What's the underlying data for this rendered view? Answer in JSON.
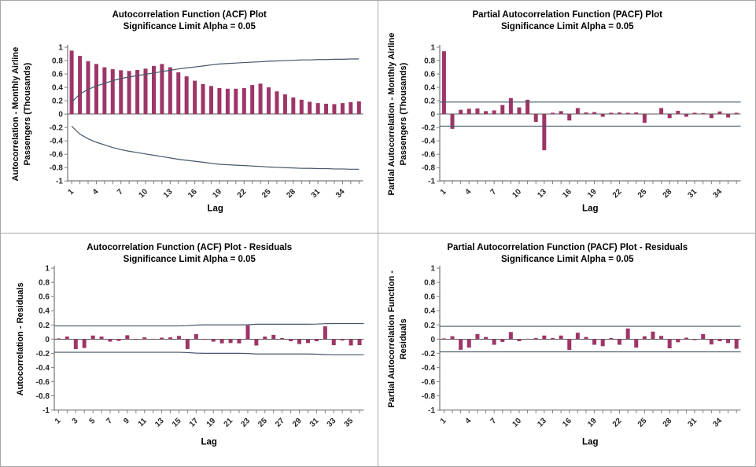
{
  "window": {
    "background": "#FFFFFF",
    "frame_color": "#A6A6A6"
  },
  "colors": {
    "bar": "#9D3667",
    "significance_line": "#44566B",
    "axis_line": "#595959",
    "tick_mark": "#808080",
    "tick_text": "#262626",
    "title_text": "#000000"
  },
  "chart_data": [
    {
      "id": "acf",
      "type": "bar",
      "title": "Autocorrelation Function (ACF) Plot",
      "subtitle": "Significance Limit Alpha = 0.05",
      "ylabel_lines": [
        "Autocorrelation - Monthly Airline",
        "Passengers (Thousands)"
      ],
      "xlabel": "Lag",
      "ylim": [
        -1,
        1
      ],
      "ytick_step": 0.2,
      "yticks": [
        "1",
        "0.8",
        "0.6",
        "0.4",
        "0.2",
        "0",
        "-0.2",
        "-0.4",
        "-0.6",
        "-0.8",
        "-1"
      ],
      "xtick_labels": [
        1,
        4,
        7,
        10,
        13,
        16,
        19,
        22,
        25,
        28,
        31,
        34
      ],
      "legend": "none",
      "grid": "off",
      "limit_span": "lags",
      "values": [
        0.95,
        0.87,
        0.79,
        0.75,
        0.7,
        0.67,
        0.655,
        0.645,
        0.66,
        0.68,
        0.72,
        0.75,
        0.7,
        0.625,
        0.565,
        0.5,
        0.45,
        0.42,
        0.39,
        0.38,
        0.38,
        0.39,
        0.435,
        0.455,
        0.4,
        0.34,
        0.295,
        0.25,
        0.215,
        0.185,
        0.165,
        0.155,
        0.15,
        0.165,
        0.18,
        0.19
      ],
      "upper_limit": [
        0.18,
        0.3,
        0.37,
        0.42,
        0.46,
        0.5,
        0.53,
        0.555,
        0.575,
        0.595,
        0.615,
        0.635,
        0.655,
        0.675,
        0.69,
        0.705,
        0.72,
        0.735,
        0.75,
        0.757,
        0.764,
        0.77,
        0.776,
        0.782,
        0.79,
        0.795,
        0.8,
        0.805,
        0.81,
        0.81,
        0.815,
        0.815,
        0.82,
        0.82,
        0.825,
        0.825
      ],
      "lower_limit": [
        -0.18,
        -0.3,
        -0.37,
        -0.42,
        -0.46,
        -0.5,
        -0.53,
        -0.555,
        -0.575,
        -0.595,
        -0.615,
        -0.635,
        -0.655,
        -0.675,
        -0.69,
        -0.705,
        -0.72,
        -0.735,
        -0.75,
        -0.757,
        -0.764,
        -0.77,
        -0.776,
        -0.782,
        -0.79,
        -0.795,
        -0.8,
        -0.805,
        -0.81,
        -0.81,
        -0.815,
        -0.815,
        -0.82,
        -0.82,
        -0.825,
        -0.825
      ]
    },
    {
      "id": "pacf",
      "type": "bar",
      "title": "Partial Autocorrelation Function (PACF) Plot",
      "subtitle": "Significance Limit Alpha = 0.05",
      "ylabel_lines": [
        "Partial Autocorrelation - Monthly Airline",
        "Passengers (Thousands)"
      ],
      "xlabel": "Lag",
      "ylim": [
        -1,
        1
      ],
      "ytick_step": 0.2,
      "yticks": [
        "1",
        "0.8",
        "0.6",
        "0.4",
        "0.2",
        "0",
        "-0.2",
        "-0.4",
        "-0.6",
        "-0.8",
        "-1"
      ],
      "xtick_labels": [
        1,
        4,
        7,
        10,
        13,
        16,
        19,
        22,
        25,
        28,
        31,
        34
      ],
      "legend": "none",
      "grid": "off",
      "limit_span": "full",
      "values": [
        0.94,
        -0.22,
        0.065,
        0.08,
        0.085,
        0.045,
        0.055,
        0.135,
        0.24,
        0.1,
        0.215,
        -0.115,
        -0.54,
        0.02,
        0.045,
        -0.095,
        0.09,
        0.025,
        0.03,
        -0.04,
        0.02,
        0.025,
        0.02,
        0.025,
        -0.13,
        0.005,
        0.09,
        -0.06,
        0.05,
        -0.04,
        0.02,
        0.015,
        -0.06,
        0.04,
        -0.05,
        0.02
      ],
      "upper_limit": [
        0.18,
        0.18,
        0.18,
        0.18,
        0.18,
        0.18,
        0.18,
        0.18,
        0.18,
        0.18,
        0.18,
        0.18,
        0.18,
        0.18,
        0.18,
        0.18,
        0.18,
        0.18,
        0.18,
        0.18,
        0.18,
        0.18,
        0.18,
        0.18,
        0.18,
        0.18,
        0.18,
        0.18,
        0.18,
        0.18,
        0.18,
        0.18,
        0.18,
        0.18,
        0.18,
        0.18
      ],
      "lower_limit": [
        -0.18,
        -0.18,
        -0.18,
        -0.18,
        -0.18,
        -0.18,
        -0.18,
        -0.18,
        -0.18,
        -0.18,
        -0.18,
        -0.18,
        -0.18,
        -0.18,
        -0.18,
        -0.18,
        -0.18,
        -0.18,
        -0.18,
        -0.18,
        -0.18,
        -0.18,
        -0.18,
        -0.18,
        -0.18,
        -0.18,
        -0.18,
        -0.18,
        -0.18,
        -0.18,
        -0.18,
        -0.18,
        -0.18,
        -0.18,
        -0.18,
        -0.18
      ]
    },
    {
      "id": "acf_residuals",
      "type": "bar",
      "title": "Autocorrelation Function (ACF) Plot - Residuals",
      "subtitle": "Significance Limit Alpha = 0.05",
      "ylabel_lines": [
        "Autocorrelation - Residuals"
      ],
      "xlabel": "Lag",
      "ylim": [
        -1,
        1
      ],
      "ytick_step": 0.2,
      "yticks": [
        "1",
        "0.8",
        "0.6",
        "0.4",
        "0.2",
        "0",
        "-0.2",
        "-0.4",
        "-0.6",
        "-0.8",
        "-1"
      ],
      "xtick_labels": [
        1,
        3,
        5,
        7,
        9,
        11,
        13,
        15,
        17,
        19,
        21,
        23,
        25,
        27,
        29,
        31,
        33,
        35
      ],
      "legend": "none",
      "grid": "off",
      "limit_span": "full",
      "values": [
        0.01,
        0.035,
        -0.14,
        -0.125,
        0.05,
        0.035,
        -0.035,
        -0.025,
        0.055,
        -0.01,
        0.025,
        0.005,
        0.02,
        0.025,
        0.045,
        -0.14,
        0.07,
        -0.01,
        -0.035,
        -0.06,
        -0.055,
        -0.06,
        0.195,
        -0.09,
        0.035,
        0.06,
        0.015,
        -0.03,
        -0.07,
        -0.055,
        -0.03,
        0.18,
        -0.085,
        -0.02,
        -0.09,
        -0.085
      ],
      "upper_limit": [
        0.185,
        0.185,
        0.185,
        0.185,
        0.185,
        0.185,
        0.185,
        0.185,
        0.185,
        0.185,
        0.185,
        0.185,
        0.185,
        0.185,
        0.185,
        0.19,
        0.198,
        0.2,
        0.2,
        0.2,
        0.2,
        0.2,
        0.203,
        0.21,
        0.21,
        0.21,
        0.21,
        0.21,
        0.21,
        0.21,
        0.212,
        0.218,
        0.22,
        0.22,
        0.22,
        0.22
      ],
      "lower_limit": [
        -0.185,
        -0.185,
        -0.185,
        -0.185,
        -0.185,
        -0.185,
        -0.185,
        -0.185,
        -0.185,
        -0.185,
        -0.185,
        -0.185,
        -0.185,
        -0.185,
        -0.185,
        -0.19,
        -0.198,
        -0.2,
        -0.2,
        -0.2,
        -0.2,
        -0.2,
        -0.203,
        -0.21,
        -0.21,
        -0.21,
        -0.21,
        -0.21,
        -0.21,
        -0.21,
        -0.212,
        -0.218,
        -0.22,
        -0.22,
        -0.22,
        -0.22
      ]
    },
    {
      "id": "pacf_residuals",
      "type": "bar",
      "title": "Partial Autocorrelation Function (PACF) Plot - Residuals",
      "subtitle": "Significance Limit Alpha = 0.05",
      "ylabel_lines": [
        "Partial Autocorrelation Function -",
        "Residuals"
      ],
      "xlabel": "Lag",
      "ylim": [
        -1,
        1
      ],
      "ytick_step": 0.2,
      "yticks": [
        "1",
        "0.8",
        "0.6",
        "0.4",
        "0.2",
        "0",
        "-0.2",
        "-0.4",
        "-0.6",
        "-0.8",
        "-1"
      ],
      "xtick_labels": [
        1,
        4,
        7,
        10,
        13,
        16,
        19,
        22,
        25,
        28,
        31,
        34
      ],
      "legend": "none",
      "grid": "off",
      "limit_span": "full",
      "values": [
        0.01,
        0.04,
        -0.15,
        -0.12,
        0.07,
        0.03,
        -0.08,
        -0.04,
        0.1,
        -0.03,
        0.005,
        0.015,
        0.05,
        0.015,
        0.05,
        -0.155,
        0.09,
        0.03,
        -0.08,
        -0.1,
        0.015,
        -0.08,
        0.15,
        -0.12,
        0.04,
        0.105,
        0.045,
        -0.13,
        -0.045,
        0.02,
        -0.015,
        0.07,
        -0.075,
        -0.03,
        -0.055,
        -0.135
      ],
      "upper_limit": [
        0.18,
        0.18,
        0.18,
        0.18,
        0.18,
        0.18,
        0.18,
        0.18,
        0.18,
        0.18,
        0.18,
        0.18,
        0.18,
        0.18,
        0.18,
        0.18,
        0.18,
        0.18,
        0.18,
        0.18,
        0.18,
        0.18,
        0.18,
        0.18,
        0.18,
        0.18,
        0.18,
        0.18,
        0.18,
        0.18,
        0.18,
        0.18,
        0.18,
        0.18,
        0.18,
        0.18
      ],
      "lower_limit": [
        -0.18,
        -0.18,
        -0.18,
        -0.18,
        -0.18,
        -0.18,
        -0.18,
        -0.18,
        -0.18,
        -0.18,
        -0.18,
        -0.18,
        -0.18,
        -0.18,
        -0.18,
        -0.18,
        -0.18,
        -0.18,
        -0.18,
        -0.18,
        -0.18,
        -0.18,
        -0.18,
        -0.18,
        -0.18,
        -0.18,
        -0.18,
        -0.18,
        -0.18,
        -0.18,
        -0.18,
        -0.18,
        -0.18,
        -0.18,
        -0.18,
        -0.18
      ]
    }
  ]
}
